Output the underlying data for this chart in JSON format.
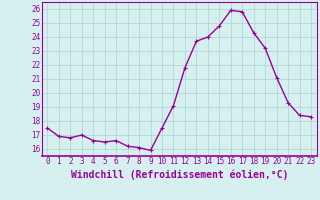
{
  "x": [
    0,
    1,
    2,
    3,
    4,
    5,
    6,
    7,
    8,
    9,
    10,
    11,
    12,
    13,
    14,
    15,
    16,
    17,
    18,
    19,
    20,
    21,
    22,
    23
  ],
  "y": [
    17.5,
    16.9,
    16.8,
    17.0,
    16.6,
    16.5,
    16.6,
    16.2,
    16.1,
    15.9,
    17.5,
    19.1,
    21.8,
    23.7,
    24.0,
    24.8,
    25.9,
    25.8,
    24.3,
    23.2,
    21.1,
    19.3,
    18.4,
    18.3
  ],
  "line_color": "#990099",
  "marker": "+",
  "marker_size": 3,
  "bg_color": "#d5f0ee",
  "grid_color": "#b0d8d8",
  "xlabel": "Windchill (Refroidissement éolien,°C)",
  "xlim": [
    -0.5,
    23.5
  ],
  "ylim": [
    15.5,
    26.5
  ],
  "yticks": [
    16,
    17,
    18,
    19,
    20,
    21,
    22,
    23,
    24,
    25,
    26
  ],
  "xticks": [
    0,
    1,
    2,
    3,
    4,
    5,
    6,
    7,
    8,
    9,
    10,
    11,
    12,
    13,
    14,
    15,
    16,
    17,
    18,
    19,
    20,
    21,
    22,
    23
  ],
  "tick_labelsize": 5.5,
  "xlabel_fontsize": 7.0,
  "line_width": 1.0
}
